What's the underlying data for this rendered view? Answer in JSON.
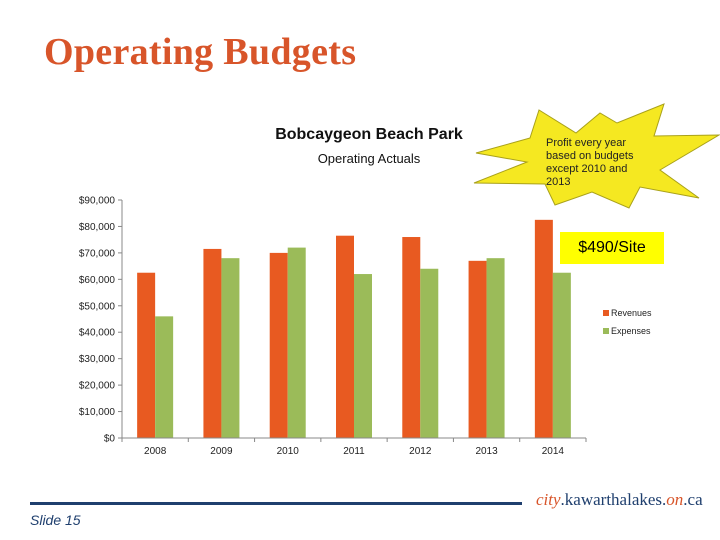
{
  "slide": {
    "title": "Operating Budgets",
    "slide_number": "Slide 15",
    "brand": {
      "part1": "city",
      "part2": ".kawarthalakes.",
      "part3": "on",
      "part4": ".ca"
    }
  },
  "burst": {
    "text": "Profit every year based on budgets except 2010 and 2013"
  },
  "callout": {
    "text": "$490/Site"
  },
  "colors": {
    "revenues": "#e85a21",
    "expenses": "#9bbb59",
    "burst": "#f5e821",
    "accent": "#d8552a",
    "navy": "#1f3f6e"
  },
  "chart_data": {
    "type": "bar",
    "title": "Bobcaygeon Beach Park",
    "subtitle": "Operating Actuals",
    "categories": [
      "2008",
      "2009",
      "2010",
      "2011",
      "2012",
      "2013",
      "2014"
    ],
    "series": [
      {
        "name": "Revenues",
        "values": [
          62500,
          71500,
          70000,
          76500,
          76000,
          67000,
          82500
        ]
      },
      {
        "name": "Expenses",
        "values": [
          46000,
          68000,
          72000,
          62000,
          64000,
          68000,
          62500
        ]
      }
    ],
    "y_ticks": [
      "$0",
      "$10,000",
      "$20,000",
      "$30,000",
      "$40,000",
      "$50,000",
      "$60,000",
      "$70,000",
      "$80,000",
      "$90,000"
    ],
    "ylim": [
      0,
      90000
    ],
    "legend": "right",
    "grid": false
  }
}
